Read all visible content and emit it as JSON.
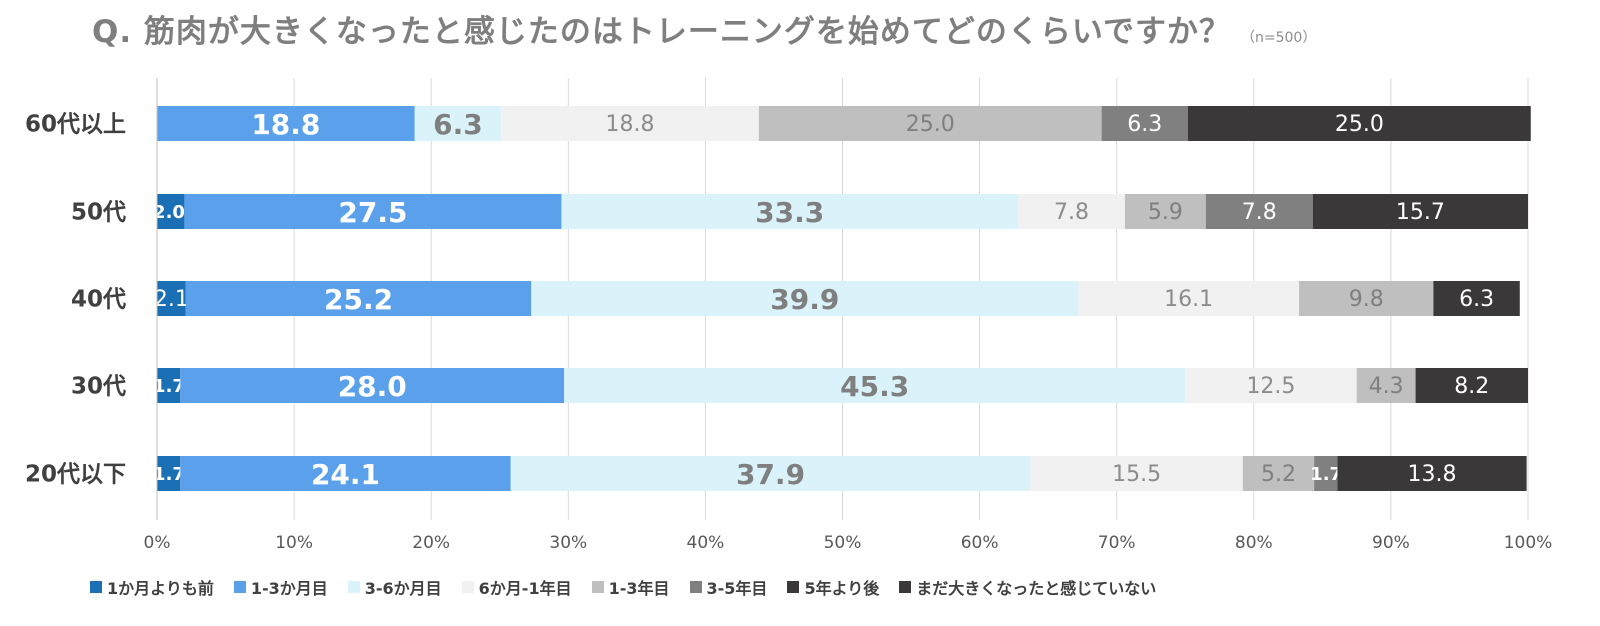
{
  "header": {
    "title": "Q.  筋肉が大きくなったと感じたのはトレーニングを始めてどのくらいですか？",
    "note": "（n=500）"
  },
  "chart_data": {
    "type": "bar",
    "orientation": "horizontal",
    "stacked": "percent",
    "title": "Q.  筋肉が大きくなったと感じたのはトレーニングを始めてどのくらいですか？",
    "note": "（n=500）",
    "categories": [
      "60代以上",
      "50代",
      "40代",
      "30代",
      "20代以下"
    ],
    "xlim": [
      0,
      100
    ],
    "xticks": [
      "0%",
      "10%",
      "20%",
      "30%",
      "40%",
      "50%",
      "60%",
      "70%",
      "80%",
      "90%",
      "100%"
    ],
    "grid": "vertical",
    "legend_position": "bottom",
    "series": [
      {
        "name": "1か月よりも前",
        "color": "#1a6fb5",
        "text_color": "#ffffff",
        "values": [
          0,
          2.0,
          2.1,
          1.7,
          1.7
        ],
        "labels": [
          "",
          "2.0",
          "2.1",
          "1.7",
          "1.7"
        ]
      },
      {
        "name": "1-3か月目",
        "color": "#5ba0ea",
        "text_color": "#ffffff",
        "values": [
          18.8,
          27.5,
          25.2,
          28.0,
          24.1
        ],
        "labels": [
          "18.8",
          "27.5",
          "25.2",
          "28.0",
          "24.1"
        ]
      },
      {
        "name": "3-6か月目",
        "color": "#daf3fb",
        "text_color": "#7f7f7f",
        "values": [
          6.3,
          33.3,
          39.9,
          45.3,
          37.9
        ],
        "labels": [
          "6.3",
          "33.3",
          "39.9",
          "45.3",
          "37.9"
        ]
      },
      {
        "name": "6か月-1年目",
        "color": "#f1f1f1",
        "text_color": "#8c8c8c",
        "values": [
          18.8,
          7.8,
          16.1,
          12.5,
          15.5
        ],
        "labels": [
          "18.8",
          "7.8",
          "16.1",
          "12.5",
          "15.5"
        ]
      },
      {
        "name": "1-3年目",
        "color": "#bfbfbf",
        "text_color": "#7f7f7f",
        "values": [
          25.0,
          5.9,
          9.8,
          4.3,
          5.2
        ],
        "labels": [
          "25.0",
          "5.9",
          "9.8",
          "4.3",
          "5.2"
        ]
      },
      {
        "name": "3-5年目",
        "color": "#808080",
        "text_color": "#ffffff",
        "values": [
          6.3,
          7.8,
          0,
          0,
          1.7
        ],
        "labels": [
          "6.3",
          "7.8",
          "",
          "",
          "1.7"
        ]
      },
      {
        "name": "5年より後",
        "color": "#3a3838",
        "text_color": "#ffffff",
        "values": [
          0,
          0,
          0,
          0,
          0
        ],
        "labels": [
          "",
          "",
          "",
          "",
          ""
        ]
      },
      {
        "name": "まだ大きくなったと感じていない",
        "color": "#3a3838",
        "text_color": "#ffffff",
        "values": [
          25.0,
          15.7,
          6.3,
          8.2,
          13.8
        ],
        "labels": [
          "25.0",
          "15.7",
          "6.3",
          "8.2",
          "13.8"
        ]
      }
    ]
  }
}
